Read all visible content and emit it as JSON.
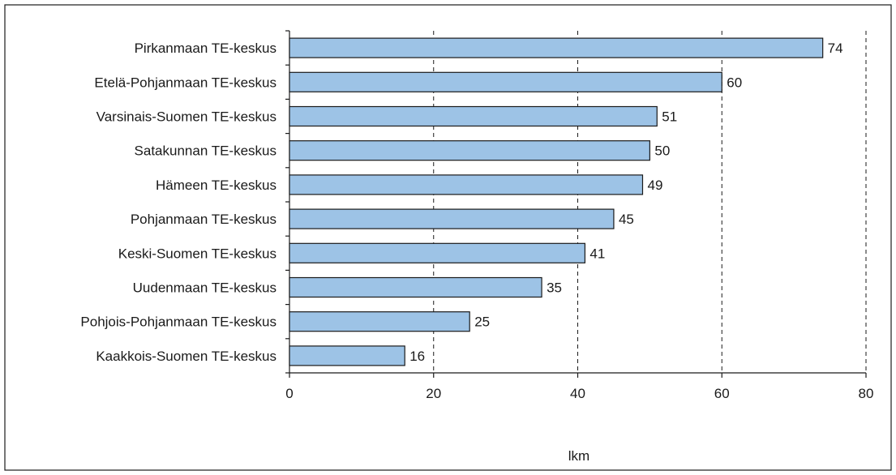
{
  "chart_data": {
    "type": "bar",
    "orientation": "horizontal",
    "categories": [
      "Pirkanmaan TE-keskus",
      "Etelä-Pohjanmaan TE-keskus",
      "Varsinais-Suomen TE-keskus",
      "Satakunnan TE-keskus",
      "Hämeen TE-keskus",
      "Pohjanmaan TE-keskus",
      "Keski-Suomen TE-keskus",
      "Uudenmaan TE-keskus",
      "Pohjois-Pohjanmaan TE-keskus",
      "Kaakkois-Suomen TE-keskus"
    ],
    "values": [
      74,
      60,
      51,
      50,
      49,
      45,
      41,
      35,
      25,
      16
    ],
    "xlabel": "lkm",
    "xlim": [
      0,
      80
    ],
    "xticks": [
      0,
      20,
      40,
      60,
      80
    ],
    "grid": "vertical dashed",
    "legend": "none",
    "colors": {
      "bar_fill": "#9dc3e6",
      "bar_stroke": "#1a1a1a",
      "grid": "#1a1a1a",
      "frame": "#1a1a1a"
    }
  }
}
